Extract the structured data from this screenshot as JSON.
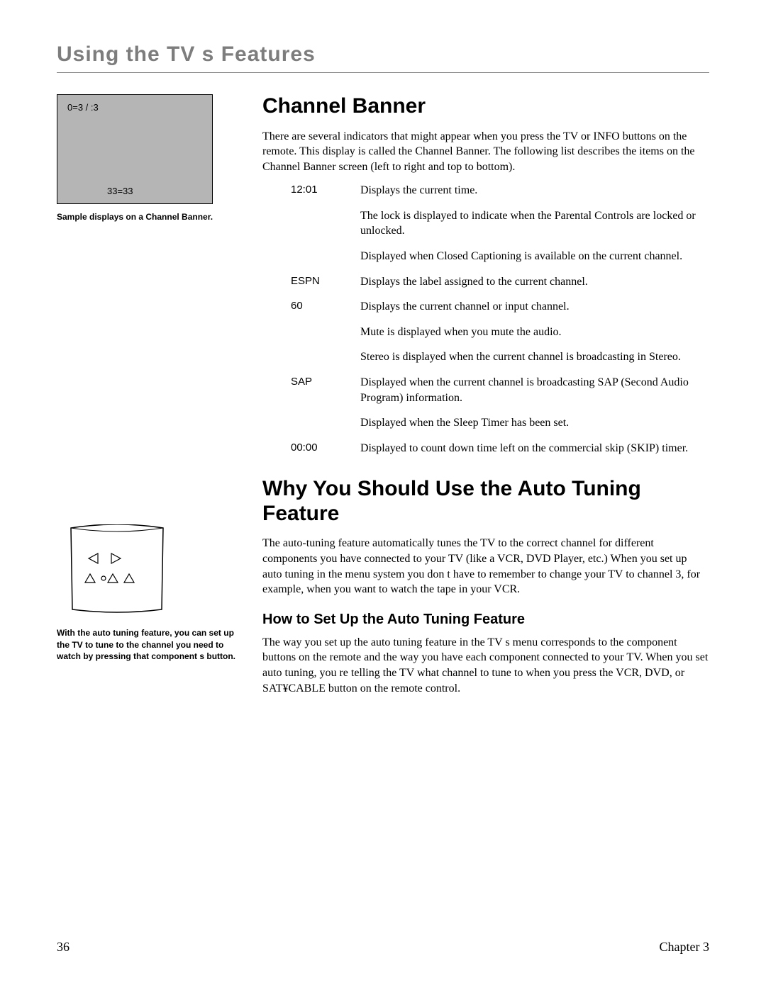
{
  "header": "Using the TV s Features",
  "banner": {
    "top": "0=3      /     :3",
    "bottom": "33=33",
    "caption": "Sample displays on a Channel Banner."
  },
  "remote_caption": "With the auto tuning feature, you can set up the TV to tune to the channel you need to watch by pressing that component s button.",
  "section1": {
    "title": "Channel Banner",
    "intro": "There are several indicators that might appear when you press the TV or INFO buttons on the remote. This display is called the Channel Banner. The following list describes the items on the Channel Banner screen (left to right and top to bottom).",
    "rows": [
      {
        "term": "12:01",
        "desc": "Displays the current time."
      },
      {
        "term": "",
        "desc": "The lock is displayed to indicate when the Parental Controls are locked or unlocked."
      },
      {
        "term": "",
        "desc": "Displayed when Closed Captioning is available on the current channel."
      },
      {
        "term": "ESPN",
        "desc": "Displays the label assigned to the current channel."
      },
      {
        "term": "60",
        "desc": "Displays the current channel or input channel."
      },
      {
        "term": "",
        "desc": "Mute is displayed when you mute the audio."
      },
      {
        "term": "",
        "desc": "Stereo is displayed when the current channel is broadcasting in Stereo."
      },
      {
        "term": "SAP",
        "desc": "Displayed when the current channel is broadcasting SAP (Second Audio Program) information."
      },
      {
        "term": "",
        "desc": "Displayed when the Sleep Timer has been set."
      },
      {
        "term": "00:00",
        "desc": "Displayed to count down time left on the commercial skip (SKIP) timer."
      }
    ]
  },
  "section2": {
    "title": "Why You Should Use the Auto Tuning Feature",
    "intro": "The auto-tuning feature automatically tunes the TV to the correct channel for different components you have connected to your TV (like a VCR, DVD Player, etc.) When you set up auto tuning in the menu system you don t have to remember to change your TV to channel 3, for example, when you want to watch the tape in your VCR.",
    "subtitle": "How to Set Up the Auto Tuning Feature",
    "body2": "The way you set up the auto tuning feature in the TV s menu corresponds to the component buttons on the remote and the way you have each component connected to your TV. When you set auto tuning, you re telling the TV what channel to tune to when you press the VCR, DVD, or SAT¥CABLE button on the remote control."
  },
  "footer": {
    "page": "36",
    "chapter": "Chapter 3"
  }
}
